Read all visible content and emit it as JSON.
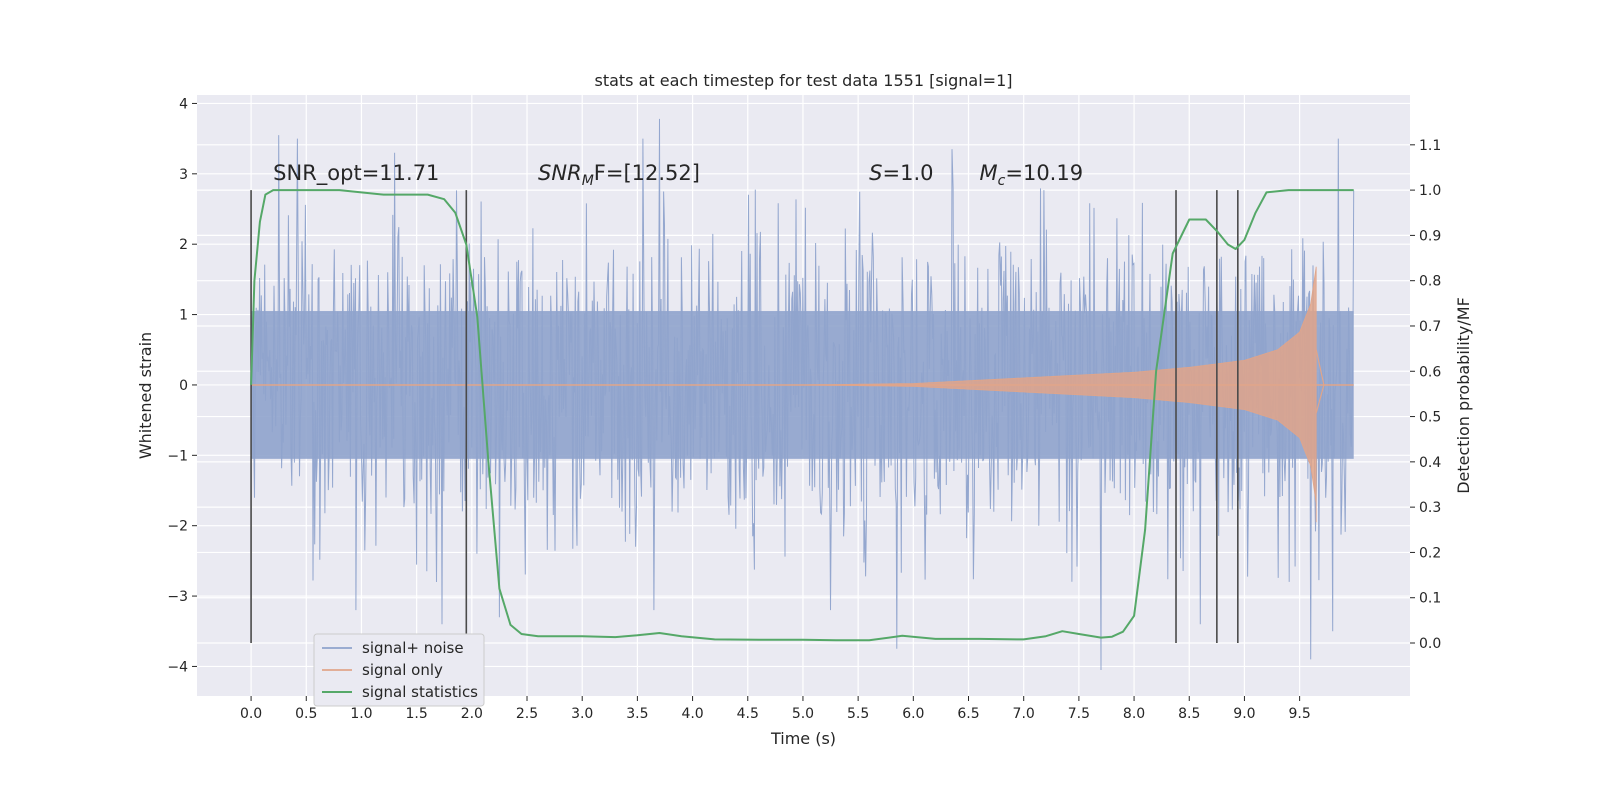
{
  "chart_data": {
    "type": "line",
    "title": "stats at each timestep for test data 1551 [signal=1]",
    "xlabel": "Time (s)",
    "ylabel": "Whitened strain",
    "y2label": "Detection probability/MF",
    "xlim": [
      -0.49,
      10.5
    ],
    "ylim": [
      -4.42,
      4.12
    ],
    "y2lim": [
      -0.117,
      1.21
    ],
    "x_ticks": [
      0.0,
      0.5,
      1.0,
      1.5,
      2.0,
      2.5,
      3.0,
      3.5,
      4.0,
      4.5,
      5.0,
      5.5,
      6.0,
      6.5,
      7.0,
      7.5,
      8.0,
      8.5,
      9.0,
      9.5
    ],
    "x_tick_labels": [
      "0.0",
      "0.5",
      "1.0",
      "1.5",
      "2.0",
      "2.5",
      "3.0",
      "3.5",
      "4.0",
      "4.5",
      "5.0",
      "5.5",
      "6.0",
      "6.5",
      "7.0",
      "7.5",
      "8.0",
      "8.5",
      "9.0",
      "9.5"
    ],
    "y_ticks": [
      4,
      3,
      2,
      1,
      0,
      -1,
      -2,
      -3,
      -4
    ],
    "y_tick_labels": [
      "4",
      "3",
      "2",
      "1",
      "0",
      "−1",
      "−2",
      "−3",
      "−4"
    ],
    "y2_ticks": [
      1.1,
      1.0,
      0.9,
      0.8,
      0.7,
      0.6,
      0.5,
      0.4,
      0.3,
      0.2,
      0.1,
      0.0
    ],
    "y2_tick_labels": [
      "1.1",
      "1.0",
      "0.9",
      "0.8",
      "0.7",
      "0.6",
      "0.5",
      "0.4",
      "0.3",
      "0.2",
      "0.1",
      "0.0"
    ],
    "grid": true,
    "legend_position": "lower-left",
    "series": [
      {
        "name": "signal+ noise",
        "color": "#8fa3cc",
        "axis": "left",
        "time_range": [
          0.0,
          9.99
        ],
        "typical_band": [
          -1.3,
          1.3
        ],
        "peaks": [
          {
            "x": 0.25,
            "y": 3.55
          },
          {
            "x": 0.42,
            "y": 3.5
          },
          {
            "x": 0.95,
            "y": -3.2
          },
          {
            "x": 1.3,
            "y": 3.3
          },
          {
            "x": 1.68,
            "y": -2.8
          },
          {
            "x": 1.73,
            "y": -3.4
          },
          {
            "x": 2.25,
            "y": -3.3
          },
          {
            "x": 3.55,
            "y": 3.5
          },
          {
            "x": 3.7,
            "y": 3.78
          },
          {
            "x": 3.65,
            "y": -3.2
          },
          {
            "x": 5.25,
            "y": -3.2
          },
          {
            "x": 5.85,
            "y": -3.75
          },
          {
            "x": 6.35,
            "y": 3.35
          },
          {
            "x": 7.7,
            "y": -4.05
          },
          {
            "x": 8.6,
            "y": -3.4
          },
          {
            "x": 9.6,
            "y": -3.9
          },
          {
            "x": 9.8,
            "y": -3.5
          },
          {
            "x": 9.85,
            "y": 3.5
          }
        ]
      },
      {
        "name": "signal only",
        "color": "#e0a58a",
        "axis": "left",
        "chirp_start": 5.0,
        "merger_time": 9.65,
        "envelope": [
          [
            5.0,
            0.0
          ],
          [
            6.0,
            0.02
          ],
          [
            7.0,
            0.1
          ],
          [
            8.0,
            0.18
          ],
          [
            8.5,
            0.25
          ],
          [
            9.0,
            0.35
          ],
          [
            9.3,
            0.5
          ],
          [
            9.5,
            0.75
          ],
          [
            9.6,
            1.15
          ],
          [
            9.65,
            1.68
          ]
        ],
        "merger_min": -1.95,
        "ringdown_end": 9.72
      },
      {
        "name": "signal statistics",
        "color": "#55a868",
        "axis": "right",
        "x": [
          0.0,
          0.03,
          0.08,
          0.13,
          0.2,
          0.4,
          0.8,
          1.2,
          1.6,
          1.75,
          1.85,
          1.95,
          2.05,
          2.15,
          2.25,
          2.35,
          2.45,
          2.6,
          2.8,
          3.0,
          3.3,
          3.5,
          3.7,
          3.9,
          4.2,
          4.6,
          5.0,
          5.3,
          5.6,
          5.9,
          6.2,
          6.6,
          7.0,
          7.2,
          7.35,
          7.5,
          7.7,
          7.8,
          7.9,
          8.0,
          8.1,
          8.2,
          8.35,
          8.5,
          8.65,
          8.75,
          8.85,
          8.92,
          9.0,
          9.1,
          9.2,
          9.4,
          9.6,
          9.99
        ],
        "values": [
          0.57,
          0.8,
          0.93,
          0.99,
          1.0,
          1.0,
          1.0,
          0.99,
          0.99,
          0.98,
          0.95,
          0.88,
          0.72,
          0.4,
          0.12,
          0.04,
          0.02,
          0.015,
          0.015,
          0.015,
          0.013,
          0.017,
          0.022,
          0.015,
          0.008,
          0.007,
          0.007,
          0.006,
          0.006,
          0.016,
          0.009,
          0.009,
          0.008,
          0.015,
          0.026,
          0.02,
          0.012,
          0.014,
          0.025,
          0.06,
          0.25,
          0.6,
          0.86,
          0.935,
          0.935,
          0.91,
          0.88,
          0.87,
          0.89,
          0.95,
          0.995,
          1.0,
          1.0,
          1.0
        ]
      }
    ],
    "vlines": [
      0.0,
      1.95,
      8.38,
      8.75,
      8.94
    ],
    "annotations": [
      {
        "text": "SNR_opt=11.71",
        "x": 0.2
      },
      {
        "base": "SNR",
        "sub": "M",
        "after": "F=[12.52]",
        "x": 2.6
      },
      {
        "base": "S",
        "after": "=1.0",
        "x": 5.6
      },
      {
        "base": "M",
        "sub": "c",
        "after": "=10.19",
        "x": 6.6
      }
    ],
    "colors": {
      "background": "#eaeaf2",
      "grid": "#ffffff",
      "vline": "#4a4a4a"
    }
  }
}
